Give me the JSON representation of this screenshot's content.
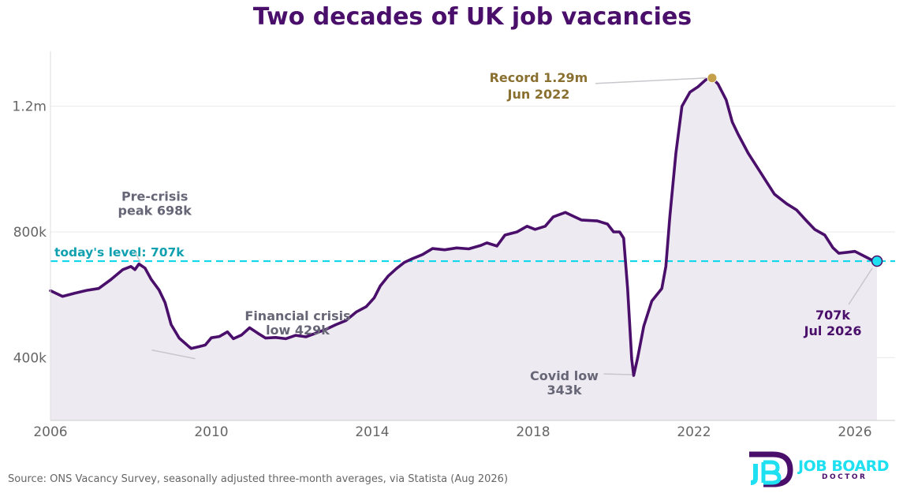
{
  "chart_data": {
    "type": "line",
    "title": "Two decades of UK job vacancies",
    "xlabel": "",
    "ylabel": "",
    "xlim": [
      2006,
      2027
    ],
    "ylim": [
      200000,
      1400000
    ],
    "x_ticks": [
      2006,
      2010,
      2014,
      2018,
      2022,
      2026
    ],
    "x_tick_labels": [
      "2006",
      "2010",
      "2014",
      "2018",
      "2022",
      "2026"
    ],
    "y_ticks": [
      400000,
      800000,
      1200000
    ],
    "y_tick_labels": [
      "400k",
      "800k",
      "1.2m"
    ],
    "grid": "horizontal",
    "series": [
      {
        "color": "#4a0f6b",
        "fill": "#eeeaf1",
        "points": [
          [
            2006.0,
            613000
          ],
          [
            2006.3,
            595000
          ],
          [
            2006.6,
            605000
          ],
          [
            2006.9,
            614000
          ],
          [
            2007.2,
            620000
          ],
          [
            2007.5,
            648000
          ],
          [
            2007.8,
            680000
          ],
          [
            2008.0,
            690000
          ],
          [
            2008.1,
            680000
          ],
          [
            2008.2,
            698000
          ],
          [
            2008.35,
            685000
          ],
          [
            2008.5,
            650000
          ],
          [
            2008.7,
            615000
          ],
          [
            2008.85,
            575000
          ],
          [
            2009.0,
            505000
          ],
          [
            2009.2,
            462000
          ],
          [
            2009.45,
            434000
          ],
          [
            2009.5,
            429000
          ],
          [
            2009.7,
            435000
          ],
          [
            2009.85,
            440000
          ],
          [
            2010.0,
            463000
          ],
          [
            2010.2,
            467000
          ],
          [
            2010.4,
            482000
          ],
          [
            2010.55,
            460000
          ],
          [
            2010.75,
            472000
          ],
          [
            2010.95,
            495000
          ],
          [
            2011.15,
            478000
          ],
          [
            2011.35,
            462000
          ],
          [
            2011.6,
            464000
          ],
          [
            2011.85,
            460000
          ],
          [
            2012.1,
            471000
          ],
          [
            2012.35,
            466000
          ],
          [
            2012.6,
            478000
          ],
          [
            2012.85,
            490000
          ],
          [
            2013.1,
            505000
          ],
          [
            2013.35,
            518000
          ],
          [
            2013.6,
            545000
          ],
          [
            2013.85,
            562000
          ],
          [
            2014.05,
            590000
          ],
          [
            2014.2,
            628000
          ],
          [
            2014.4,
            660000
          ],
          [
            2014.6,
            683000
          ],
          [
            2014.8,
            703000
          ],
          [
            2015.0,
            715000
          ],
          [
            2015.25,
            728000
          ],
          [
            2015.5,
            747000
          ],
          [
            2015.8,
            743000
          ],
          [
            2016.1,
            749000
          ],
          [
            2016.4,
            746000
          ],
          [
            2016.7,
            757000
          ],
          [
            2016.85,
            765000
          ],
          [
            2017.1,
            755000
          ],
          [
            2017.3,
            790000
          ],
          [
            2017.6,
            800000
          ],
          [
            2017.85,
            818000
          ],
          [
            2018.05,
            808000
          ],
          [
            2018.3,
            818000
          ],
          [
            2018.5,
            848000
          ],
          [
            2018.8,
            862000
          ],
          [
            2019.0,
            850000
          ],
          [
            2019.2,
            838000
          ],
          [
            2019.6,
            835000
          ],
          [
            2019.85,
            825000
          ],
          [
            2020.0,
            800000
          ],
          [
            2020.15,
            800000
          ],
          [
            2020.25,
            780000
          ],
          [
            2020.35,
            620000
          ],
          [
            2020.45,
            395000
          ],
          [
            2020.5,
            343000
          ],
          [
            2020.6,
            400000
          ],
          [
            2020.75,
            500000
          ],
          [
            2020.95,
            580000
          ],
          [
            2021.2,
            620000
          ],
          [
            2021.3,
            690000
          ],
          [
            2021.4,
            850000
          ],
          [
            2021.55,
            1050000
          ],
          [
            2021.7,
            1200000
          ],
          [
            2021.9,
            1245000
          ],
          [
            2022.1,
            1262000
          ],
          [
            2022.3,
            1285000
          ],
          [
            2022.45,
            1290000
          ],
          [
            2022.6,
            1270000
          ],
          [
            2022.8,
            1220000
          ],
          [
            2022.95,
            1150000
          ],
          [
            2023.1,
            1110000
          ],
          [
            2023.35,
            1050000
          ],
          [
            2023.6,
            1000000
          ],
          [
            2023.8,
            960000
          ],
          [
            2024.0,
            920000
          ],
          [
            2024.3,
            890000
          ],
          [
            2024.55,
            870000
          ],
          [
            2024.8,
            835000
          ],
          [
            2025.0,
            808000
          ],
          [
            2025.25,
            790000
          ],
          [
            2025.45,
            750000
          ],
          [
            2025.6,
            732000
          ],
          [
            2025.8,
            735000
          ],
          [
            2026.0,
            738000
          ],
          [
            2026.2,
            725000
          ],
          [
            2026.4,
            712000
          ],
          [
            2026.55,
            707000
          ]
        ]
      }
    ],
    "reference_line": {
      "value": 707000,
      "label": "today's level: 707k",
      "color": "#10d8ea"
    },
    "annotations": [
      {
        "x": 2008.2,
        "y": 698000,
        "lines": [
          "Pre-crisis",
          "peak 698k"
        ],
        "color": "#666677",
        "marker": false
      },
      {
        "x": 2009.5,
        "y": 429000,
        "lines": [
          "Financial crisis",
          "low 429k"
        ],
        "color": "#666677",
        "marker": false
      },
      {
        "x": 2020.5,
        "y": 343000,
        "lines": [
          "Covid low",
          "343k"
        ],
        "color": "#666677",
        "marker": false
      },
      {
        "x": 2022.45,
        "y": 1290000,
        "lines": [
          "Record 1.29m",
          "Jun 2022"
        ],
        "color": "#8a7030",
        "marker": true,
        "marker_color": "#c4a04a"
      },
      {
        "x": 2026.55,
        "y": 707000,
        "lines": [
          "707k",
          "Jul 2026"
        ],
        "color": "#4a0f6b",
        "marker": true,
        "marker_color": "#1ee0f0"
      }
    ]
  },
  "footer": {
    "source": "Source: ONS Vacancy Survey, seasonally adjusted three-month averages, via Statista (Aug 2026)"
  },
  "logo": {
    "name": "JOB BOARD",
    "sub": "DOCTOR",
    "primary_color": "#4a0f6b",
    "accent_color": "#1ee0f0"
  }
}
